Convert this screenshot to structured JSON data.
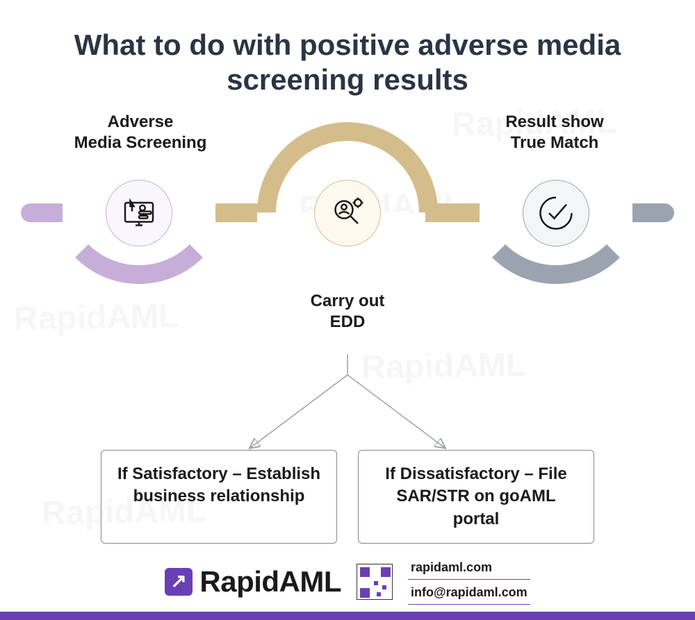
{
  "colors": {
    "title": "#2a3544",
    "text": "#1a1a1a",
    "purple": "#c6aed8",
    "tan": "#d4bd8b",
    "gray": "#9ba3b0",
    "brand": "#6a3fb5",
    "box_border": "#888888",
    "background": "#ffffff"
  },
  "typography": {
    "title_fontsize": 42,
    "label_fontsize": 24,
    "box_fontsize": 24,
    "brand_fontsize": 42,
    "contact_fontsize": 18
  },
  "title": "What to do with positive adverse media screening results",
  "steps": {
    "left": {
      "label": "Adverse\nMedia Screening",
      "color": "#c6aed8",
      "icon": "screening"
    },
    "mid": {
      "label": "Carry out\nEDD",
      "color": "#d4bd8b",
      "icon": "edd"
    },
    "right": {
      "label": "Result show\nTrue Match",
      "color": "#9ba3b0",
      "icon": "checkmark"
    }
  },
  "outcomes": [
    "If Satisfactory – Establish business relationship",
    "If Dissatisfactory – File SAR/STR on goAML portal"
  ],
  "footer": {
    "brand": "RapidAML",
    "website": "rapidaml.com",
    "email": "info@rapidaml.com"
  },
  "watermark_text": "RapidAML"
}
